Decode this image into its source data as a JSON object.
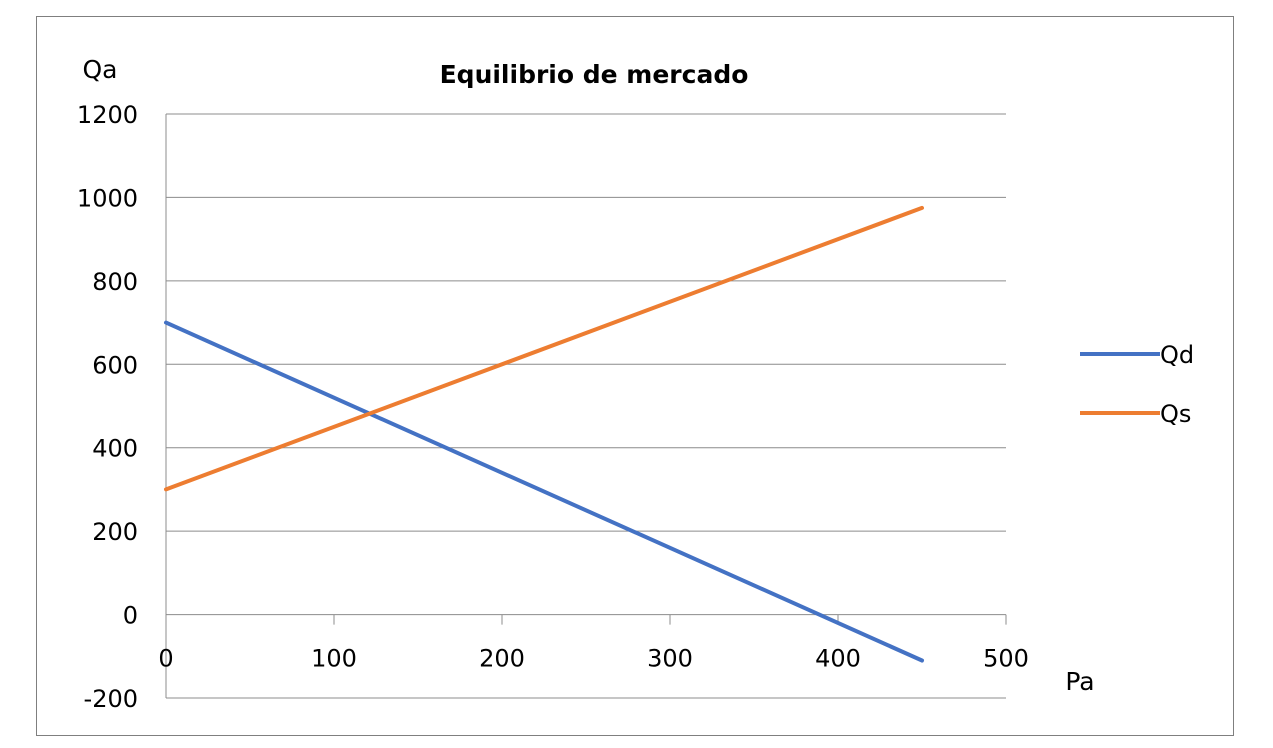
{
  "chart_data": {
    "type": "line",
    "title": "Equilibrio de mercado",
    "xlabel": "Pa",
    "ylabel": "Qa",
    "xlim": [
      0,
      500
    ],
    "ylim": [
      -200,
      1200
    ],
    "x_ticks": [
      0,
      100,
      200,
      300,
      400,
      500
    ],
    "y_ticks": [
      -200,
      0,
      200,
      400,
      600,
      800,
      1000,
      1200
    ],
    "grid": "horizontal",
    "legend_position": "right",
    "series": [
      {
        "name": "Qd",
        "color": "#4472c4",
        "x": [
          0,
          450
        ],
        "y": [
          700,
          -110
        ]
      },
      {
        "name": "Qs",
        "color": "#ed7d31",
        "x": [
          0,
          450
        ],
        "y": [
          300,
          975
        ]
      }
    ]
  }
}
